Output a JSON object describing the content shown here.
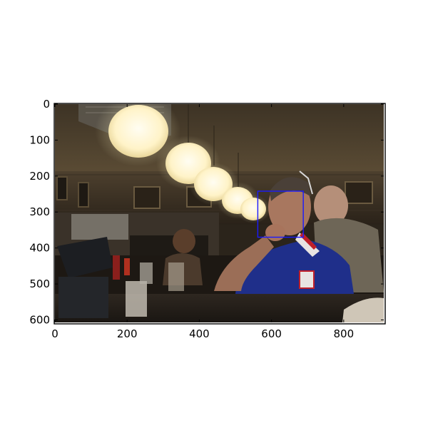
{
  "image": {
    "width": 911,
    "height": 607,
    "description_colors": {
      "background_dark": "#2b241b",
      "ceiling": "#4a3f2c",
      "lamp_glow": "#fff6d6",
      "shirt_blue": "#1f2f8a"
    }
  },
  "bbox": {
    "xmin": 562,
    "ymin": 242,
    "xmax": 688,
    "ymax": 370,
    "color": "#1a1aff"
  },
  "axes": {
    "x_ticks": [
      "0",
      "200",
      "400",
      "600",
      "800"
    ],
    "x_tick_values": [
      0,
      200,
      400,
      600,
      800
    ],
    "y_ticks": [
      "0",
      "100",
      "200",
      "300",
      "400",
      "500",
      "600"
    ],
    "y_tick_values": [
      0,
      100,
      200,
      300,
      400,
      500,
      600
    ]
  }
}
